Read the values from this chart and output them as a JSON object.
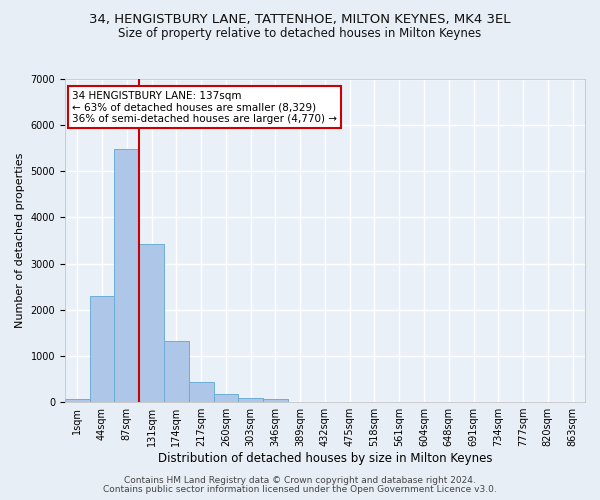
{
  "title": "34, HENGISTBURY LANE, TATTENHOE, MILTON KEYNES, MK4 3EL",
  "subtitle": "Size of property relative to detached houses in Milton Keynes",
  "xlabel": "Distribution of detached houses by size in Milton Keynes",
  "ylabel": "Number of detached properties",
  "footnote1": "Contains HM Land Registry data © Crown copyright and database right 2024.",
  "footnote2": "Contains public sector information licensed under the Open Government Licence v3.0.",
  "bar_values": [
    70,
    2290,
    5480,
    3430,
    1320,
    440,
    170,
    90,
    60,
    0,
    0,
    0,
    0,
    0,
    0,
    0,
    0,
    0,
    0,
    0
  ],
  "bar_labels": [
    "1sqm",
    "44sqm",
    "87sqm",
    "131sqm",
    "174sqm",
    "217sqm",
    "260sqm",
    "303sqm",
    "346sqm",
    "389sqm",
    "432sqm",
    "475sqm",
    "518sqm",
    "561sqm",
    "604sqm",
    "648sqm",
    "691sqm",
    "734sqm",
    "777sqm",
    "820sqm",
    "863sqm"
  ],
  "bar_color": "#aec6e8",
  "bar_edgecolor": "#6aaed6",
  "vline_x": 3,
  "vline_color": "#cc0000",
  "annotation_text": "34 HENGISTBURY LANE: 137sqm\n← 63% of detached houses are smaller (8,329)\n36% of semi-detached houses are larger (4,770) →",
  "annotation_box_color": "#ffffff",
  "annotation_box_edgecolor": "#cc0000",
  "ylim": [
    0,
    7000
  ],
  "yticks": [
    0,
    1000,
    2000,
    3000,
    4000,
    5000,
    6000,
    7000
  ],
  "background_color": "#e8eef5",
  "plot_background_color": "#eaf0f8",
  "grid_color": "#ffffff",
  "title_fontsize": 9.5,
  "subtitle_fontsize": 8.5,
  "xlabel_fontsize": 8.5,
  "ylabel_fontsize": 8,
  "tick_fontsize": 7,
  "annotation_fontsize": 7.5,
  "footnote_fontsize": 6.5
}
